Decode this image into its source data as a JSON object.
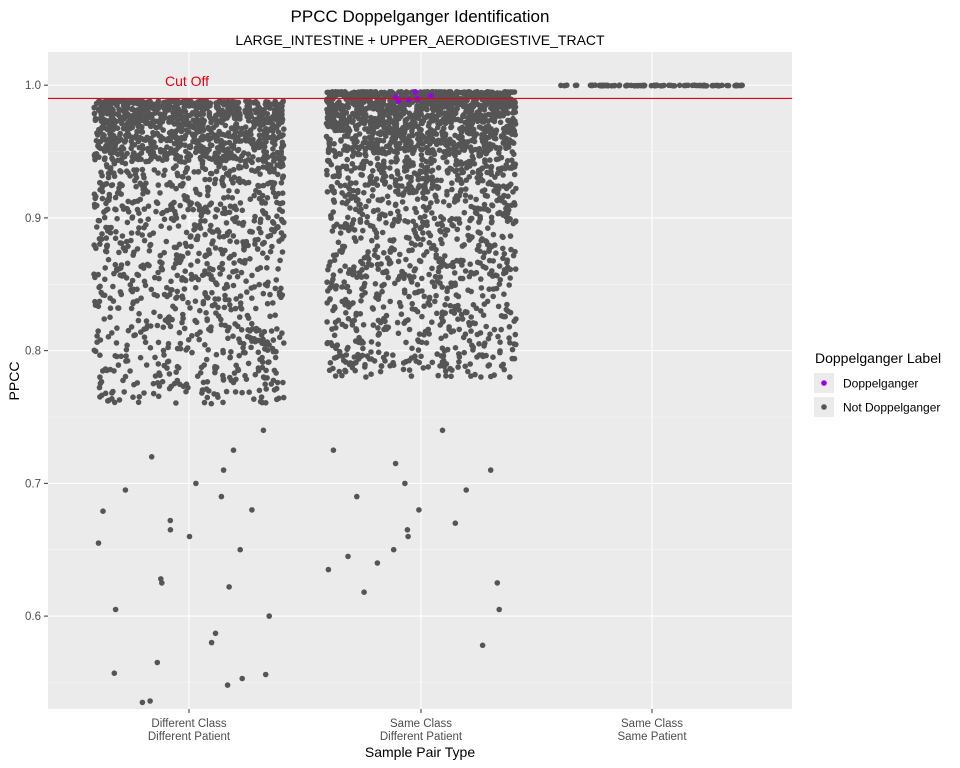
{
  "chart_data": {
    "type": "scatter",
    "subtype": "jitter-strip",
    "title": "PPCC Doppelganger Identification",
    "subtitle": "LARGE_INTESTINE + UPPER_AERODIGESTIVE_TRACT",
    "xlabel": "Sample Pair Type",
    "ylabel": "PPCC",
    "ylim": [
      0.53,
      1.025
    ],
    "yticks": [
      0.6,
      0.7,
      0.8,
      0.9,
      1.0
    ],
    "ytick_labels": [
      "0.6",
      "0.7",
      "0.8",
      "0.9",
      "1.0"
    ],
    "categories": [
      [
        "Different Class",
        "Different Patient"
      ],
      [
        "Same Class",
        "Different Patient"
      ],
      [
        "Same Class",
        "Same Patient"
      ]
    ],
    "cutoff": {
      "value": 0.99,
      "label": "Cut Off",
      "color": "#e8000b"
    },
    "legend": {
      "title": "Doppelganger Label",
      "position": "right",
      "entries": [
        {
          "label": "Doppelganger",
          "color": "#9900ee"
        },
        {
          "label": "Not Doppelganger",
          "color": "#555555"
        }
      ]
    },
    "groups": [
      {
        "category": "Different Class / Different Patient",
        "points": 1900,
        "max": 0.988,
        "min": 0.535,
        "mode": 0.955,
        "doppelganger_points": [],
        "outlier_values": [
          0.765,
          0.74,
          0.725,
          0.72,
          0.71,
          0.7,
          0.695,
          0.69,
          0.68,
          0.679,
          0.672,
          0.665,
          0.66,
          0.655,
          0.65,
          0.628,
          0.625,
          0.622,
          0.605,
          0.6,
          0.587,
          0.58,
          0.565,
          0.557,
          0.556,
          0.553,
          0.548,
          0.536,
          0.535
        ]
      },
      {
        "category": "Same Class / Different Patient",
        "points": 2200,
        "max": 0.995,
        "min": 0.578,
        "mode": 0.96,
        "doppelganger_points": [
          0.995,
          0.992,
          0.991,
          0.99,
          0.989,
          0.988
        ],
        "outlier_values": [
          0.74,
          0.725,
          0.715,
          0.71,
          0.7,
          0.695,
          0.69,
          0.68,
          0.67,
          0.665,
          0.66,
          0.65,
          0.645,
          0.64,
          0.635,
          0.625,
          0.618,
          0.605,
          0.578
        ]
      },
      {
        "category": "Same Class / Same Patient",
        "points": 90,
        "max": 1.0,
        "min": 0.9995,
        "mode": 1.0,
        "doppelganger_points": [],
        "outlier_values": []
      }
    ],
    "grid": true
  }
}
